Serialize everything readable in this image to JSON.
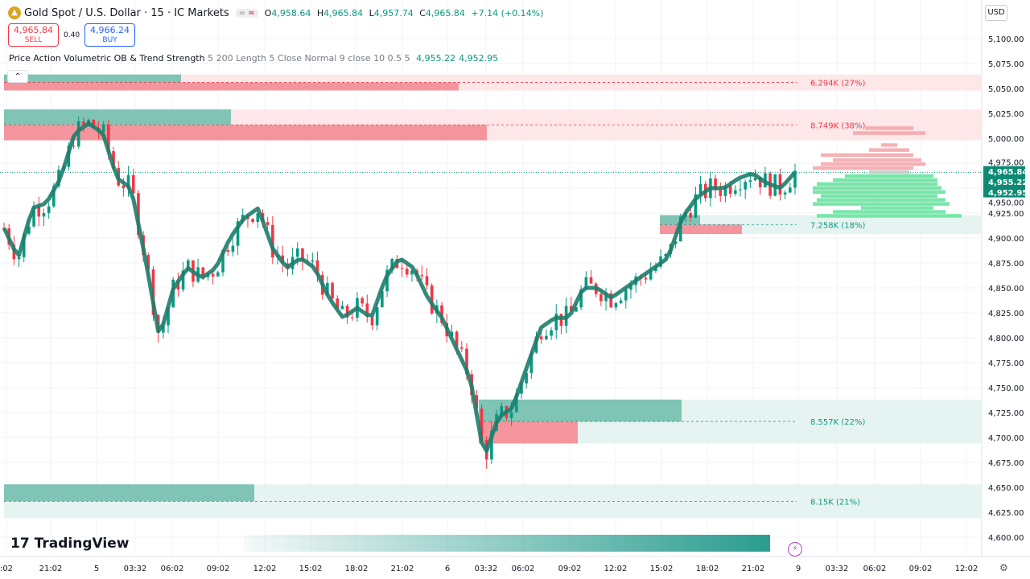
{
  "header": {
    "symbol": "Gold Spot / U.S. Dollar · 15 · IC Markets",
    "open_label": "O",
    "open": "4,958.64",
    "high_label": "H",
    "high": "4,965.84",
    "low_label": "L",
    "low": "4,957.74",
    "close_label": "C",
    "close": "4,965.84",
    "change": "+7.14 (+0.14%)"
  },
  "trade": {
    "sell_price": "4,965.84",
    "sell_label": "SELL",
    "spread": "0.40",
    "buy_price": "4,966.24",
    "buy_label": "BUY"
  },
  "indicator": {
    "name": "Price Action Volumetric OB & Trend Strength",
    "params": "5 200 Length 5 Close Normal 9 close 10 0.5 5",
    "value1": "4,955.22",
    "value2": "4,952.95"
  },
  "currency": "USD",
  "brand": "TradingView",
  "colors": {
    "up": "#089981",
    "down": "#f23645",
    "bull_zone": "#e6f4f1",
    "bear_zone": "#fde7e9",
    "trend": "#1e7d6c"
  },
  "chart_data": {
    "type": "candlestick",
    "ylim": [
      4600,
      5100
    ],
    "y_ticks": [
      "5,100.00",
      "5,075.00",
      "5,050.00",
      "5,025.00",
      "5,000.00",
      "4,975.00",
      "4,950.00",
      "4,925.00",
      "4,900.00",
      "4,875.00",
      "4,850.00",
      "4,825.00",
      "4,800.00",
      "4,775.00",
      "4,750.00",
      "4,725.00",
      "4,700.00",
      "4,675.00",
      "4,650.00",
      "4,625.00",
      "4,600.00"
    ],
    "x_ticks": [
      ":02",
      "21:02",
      "5",
      "03:32",
      "06:02",
      "09:02",
      "12:02",
      "15:02",
      "18:02",
      "21:02",
      "6",
      "03:32",
      "06:02",
      "09:02",
      "12:02",
      "15:02",
      "18:02",
      "21:02",
      "9",
      "03:32",
      "06:02",
      "09:02",
      "12:02"
    ],
    "price_path": [
      4910,
      4880,
      4930,
      4935,
      4960,
      5005,
      5015,
      5005,
      4960,
      4950,
      4880,
      4800,
      4850,
      4870,
      4860,
      4870,
      4900,
      4920,
      4930,
      4890,
      4870,
      4880,
      4870,
      4840,
      4820,
      4830,
      4820,
      4860,
      4880,
      4870,
      4840,
      4820,
      4790,
      4760,
      4680,
      4720,
      4730,
      4770,
      4810,
      4820,
      4820,
      4850,
      4850,
      4840,
      4850,
      4860,
      4870,
      4880,
      4920,
      4940,
      4950,
      4950,
      4960,
      4965,
      4955,
      4950,
      4966
    ],
    "price_labels": [
      {
        "value": "4,965.84",
        "price": 4965.84
      },
      {
        "value": "4,955.22",
        "price": 4955.22
      },
      {
        "value": "4,952.95",
        "price": 4952.95
      }
    ],
    "order_blocks": [
      {
        "type": "bearish",
        "top": 5064,
        "bottom": 5048,
        "label": "6.294K (27%)"
      },
      {
        "type": "bearish",
        "top": 5029,
        "bottom": 4998,
        "label": "8.749K (38%)"
      },
      {
        "type": "bullish",
        "top": 4923,
        "bottom": 4904,
        "label": "7.258K (18%)"
      },
      {
        "type": "bullish",
        "top": 4738,
        "bottom": 4694,
        "label": "8.557K (22%)"
      },
      {
        "type": "bullish",
        "top": 4653,
        "bottom": 4619,
        "label": "8.15K (21%)"
      }
    ]
  }
}
